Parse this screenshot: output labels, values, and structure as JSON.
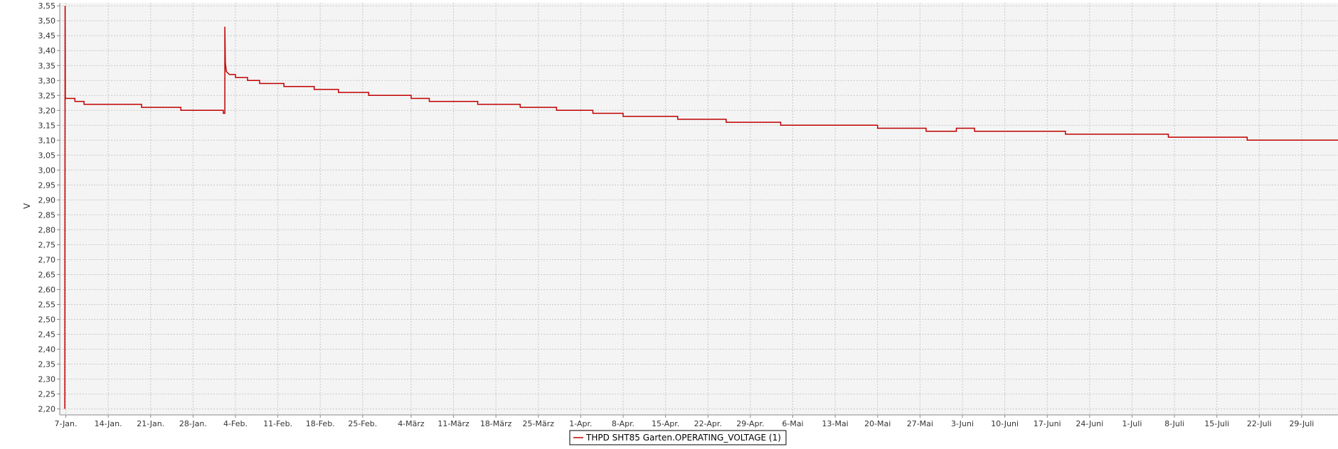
{
  "chart_data": {
    "type": "line",
    "title": "",
    "xlabel": "",
    "ylabel": "V",
    "ylim": [
      2.18,
      3.56
    ],
    "xlim": [
      "2024-01-06",
      "2024-08-04"
    ],
    "grid": true,
    "legend_placement": "bottom-center",
    "y_ticks": [
      "2,20",
      "2,25",
      "2,30",
      "2,35",
      "2,40",
      "2,45",
      "2,50",
      "2,55",
      "2,60",
      "2,65",
      "2,70",
      "2,75",
      "2,80",
      "2,85",
      "2,90",
      "2,95",
      "3,00",
      "3,05",
      "3,10",
      "3,15",
      "3,20",
      "3,25",
      "3,30",
      "3,35",
      "3,40",
      "3,45",
      "3,50",
      "3,55"
    ],
    "x_ticks": [
      {
        "date": "2024-01-07",
        "label": "7-Jan."
      },
      {
        "date": "2024-01-14",
        "label": "14-Jan."
      },
      {
        "date": "2024-01-21",
        "label": "21-Jan."
      },
      {
        "date": "2024-01-28",
        "label": "28-Jan."
      },
      {
        "date": "2024-02-04",
        "label": "4-Feb."
      },
      {
        "date": "2024-02-11",
        "label": "11-Feb."
      },
      {
        "date": "2024-02-18",
        "label": "18-Feb."
      },
      {
        "date": "2024-02-25",
        "label": "25-Feb."
      },
      {
        "date": "2024-03-04",
        "label": "4-März"
      },
      {
        "date": "2024-03-11",
        "label": "11-März"
      },
      {
        "date": "2024-03-18",
        "label": "18-März"
      },
      {
        "date": "2024-03-25",
        "label": "25-März"
      },
      {
        "date": "2024-04-01",
        "label": "1-Apr."
      },
      {
        "date": "2024-04-08",
        "label": "8-Apr."
      },
      {
        "date": "2024-04-15",
        "label": "15-Apr."
      },
      {
        "date": "2024-04-22",
        "label": "22-Apr."
      },
      {
        "date": "2024-04-29",
        "label": "29-Apr."
      },
      {
        "date": "2024-05-06",
        "label": "6-Mai"
      },
      {
        "date": "2024-05-13",
        "label": "13-Mai"
      },
      {
        "date": "2024-05-20",
        "label": "20-Mai"
      },
      {
        "date": "2024-05-27",
        "label": "27-Mai"
      },
      {
        "date": "2024-06-03",
        "label": "3-Juni"
      },
      {
        "date": "2024-06-10",
        "label": "10-Juni"
      },
      {
        "date": "2024-06-17",
        "label": "17-Juni"
      },
      {
        "date": "2024-06-24",
        "label": "24-Juni"
      },
      {
        "date": "2024-07-01",
        "label": "1-Juli"
      },
      {
        "date": "2024-07-08",
        "label": "8-Juli"
      },
      {
        "date": "2024-07-15",
        "label": "15-Juli"
      },
      {
        "date": "2024-07-22",
        "label": "22-Juli"
      },
      {
        "date": "2024-07-29",
        "label": "29-Juli"
      }
    ],
    "series": [
      {
        "name": "THPD SHT85 Garten.OPERATING_VOLTAGE (1)",
        "color": "#c00000",
        "points": [
          [
            "2024-01-06 20:00",
            2.2
          ],
          [
            "2024-01-06 21:00",
            3.55
          ],
          [
            "2024-01-06 22:00",
            3.24
          ],
          [
            "2024-01-08 12:00",
            3.24
          ],
          [
            "2024-01-08 12:00",
            3.23
          ],
          [
            "2024-01-10 00:00",
            3.23
          ],
          [
            "2024-01-10 00:00",
            3.22
          ],
          [
            "2024-01-19 12:00",
            3.22
          ],
          [
            "2024-01-19 12:00",
            3.21
          ],
          [
            "2024-01-26 00:00",
            3.21
          ],
          [
            "2024-01-26 00:00",
            3.2
          ],
          [
            "2024-02-02 00:00",
            3.2
          ],
          [
            "2024-02-02 00:00",
            3.19
          ],
          [
            "2024-02-02 06:00",
            3.19
          ],
          [
            "2024-02-02 06:00",
            3.48
          ],
          [
            "2024-02-02 08:00",
            3.36
          ],
          [
            "2024-02-02 12:00",
            3.33
          ],
          [
            "2024-02-03 00:00",
            3.32
          ],
          [
            "2024-02-04 00:00",
            3.32
          ],
          [
            "2024-02-04 00:00",
            3.31
          ],
          [
            "2024-02-06 00:00",
            3.31
          ],
          [
            "2024-02-06 00:00",
            3.3
          ],
          [
            "2024-02-08 00:00",
            3.3
          ],
          [
            "2024-02-08 00:00",
            3.29
          ],
          [
            "2024-02-12 00:00",
            3.29
          ],
          [
            "2024-02-12 00:00",
            3.28
          ],
          [
            "2024-02-17 00:00",
            3.28
          ],
          [
            "2024-02-17 00:00",
            3.27
          ],
          [
            "2024-02-21 00:00",
            3.27
          ],
          [
            "2024-02-21 00:00",
            3.26
          ],
          [
            "2024-02-26 00:00",
            3.26
          ],
          [
            "2024-02-26 00:00",
            3.25
          ],
          [
            "2024-03-04 00:00",
            3.25
          ],
          [
            "2024-03-04 00:00",
            3.24
          ],
          [
            "2024-03-07 00:00",
            3.24
          ],
          [
            "2024-03-07 00:00",
            3.23
          ],
          [
            "2024-03-15 00:00",
            3.23
          ],
          [
            "2024-03-15 00:00",
            3.22
          ],
          [
            "2024-03-22 00:00",
            3.22
          ],
          [
            "2024-03-22 00:00",
            3.21
          ],
          [
            "2024-03-28 00:00",
            3.21
          ],
          [
            "2024-03-28 00:00",
            3.2
          ],
          [
            "2024-04-03 00:00",
            3.2
          ],
          [
            "2024-04-03 00:00",
            3.19
          ],
          [
            "2024-04-08 00:00",
            3.19
          ],
          [
            "2024-04-08 00:00",
            3.18
          ],
          [
            "2024-04-17 00:00",
            3.18
          ],
          [
            "2024-04-17 00:00",
            3.17
          ],
          [
            "2024-04-25 00:00",
            3.17
          ],
          [
            "2024-04-25 00:00",
            3.16
          ],
          [
            "2024-05-04 00:00",
            3.16
          ],
          [
            "2024-05-04 00:00",
            3.15
          ],
          [
            "2024-05-20 00:00",
            3.15
          ],
          [
            "2024-05-20 00:00",
            3.14
          ],
          [
            "2024-05-28 00:00",
            3.14
          ],
          [
            "2024-05-28 00:00",
            3.13
          ],
          [
            "2024-06-02 00:00",
            3.13
          ],
          [
            "2024-06-02 00:00",
            3.14
          ],
          [
            "2024-06-05 00:00",
            3.14
          ],
          [
            "2024-06-05 00:00",
            3.13
          ],
          [
            "2024-06-20 00:00",
            3.13
          ],
          [
            "2024-06-20 00:00",
            3.12
          ],
          [
            "2024-07-07 00:00",
            3.12
          ],
          [
            "2024-07-07 00:00",
            3.11
          ],
          [
            "2024-07-20 00:00",
            3.11
          ],
          [
            "2024-07-20 00:00",
            3.1
          ],
          [
            "2024-08-04 00:00",
            3.1
          ]
        ]
      }
    ]
  }
}
